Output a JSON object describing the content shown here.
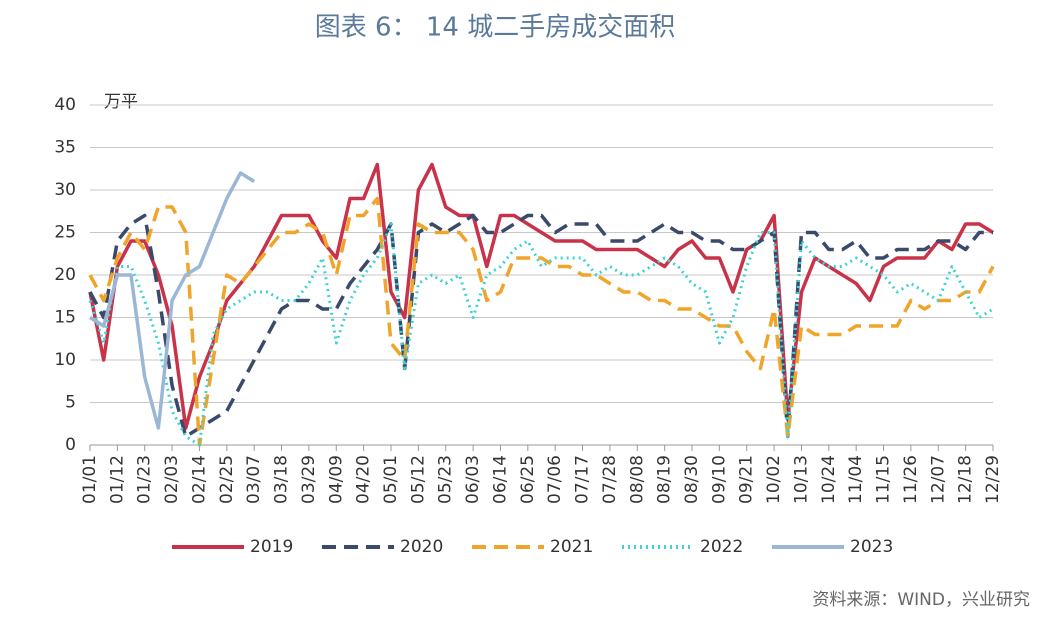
{
  "chart_data": {
    "type": "line",
    "title": "图表 6：  14 城二手房成交面积",
    "y_unit": "万平",
    "source": "资料来源：WIND，兴业研究",
    "categories": [
      "01/01",
      null,
      "01/12",
      null,
      "01/23",
      null,
      "02/03",
      null,
      "02/14",
      null,
      "02/25",
      null,
      "03/07",
      null,
      "03/18",
      null,
      "03/29",
      null,
      "04/09",
      null,
      "04/20",
      null,
      "05/01",
      null,
      "05/12",
      null,
      "05/23",
      null,
      "06/03",
      null,
      "06/14",
      null,
      "06/25",
      null,
      "07/06",
      null,
      "07/17",
      null,
      "07/28",
      null,
      "08/08",
      null,
      "08/19",
      null,
      "08/30",
      null,
      "09/10",
      null,
      "09/21",
      null,
      "10/02",
      null,
      "10/13",
      null,
      "10/24",
      null,
      "11/04",
      null,
      "11/15",
      null,
      "11/26",
      null,
      "12/07",
      null,
      "12/18",
      null,
      "12/29"
    ],
    "series": [
      {
        "name": "2019",
        "color": "#c8334a",
        "dash": "solid",
        "values": [
          18,
          10,
          21,
          24,
          24,
          20,
          14,
          2,
          8,
          12,
          17,
          19,
          21,
          24,
          27,
          27,
          27,
          24,
          22,
          29,
          29,
          33,
          18,
          15,
          30,
          33,
          28,
          27,
          27,
          21,
          27,
          27,
          26,
          25,
          24,
          24,
          24,
          23,
          23,
          23,
          23,
          22,
          21,
          23,
          24,
          22,
          22,
          18,
          23,
          24,
          27,
          3,
          18,
          22,
          21,
          20,
          19,
          17,
          21,
          22,
          22,
          22,
          24,
          23,
          26,
          26,
          25
        ]
      },
      {
        "name": "2020",
        "color": "#3a4a6b",
        "dash": "dashed",
        "values": [
          18,
          15,
          24,
          26,
          27,
          18,
          7,
          1,
          2,
          3,
          4,
          7,
          10,
          13,
          16,
          17,
          17,
          16,
          16,
          19,
          21,
          23,
          26,
          9,
          25,
          26,
          25,
          26,
          27,
          25,
          25,
          26,
          27,
          27,
          25,
          26,
          26,
          26,
          24,
          24,
          24,
          25,
          26,
          25,
          25,
          24,
          24,
          23,
          23,
          24,
          25,
          1,
          25,
          25,
          23,
          23,
          24,
          22,
          22,
          23,
          23,
          23,
          24,
          24,
          23,
          25,
          25
        ]
      },
      {
        "name": "2021",
        "color": "#f0a52a",
        "dash": "dashed",
        "values": [
          20,
          17,
          22,
          25,
          23,
          28,
          28,
          25,
          0,
          10,
          20,
          19,
          21,
          23,
          25,
          25,
          26,
          25,
          20,
          27,
          27,
          29,
          12,
          10,
          26,
          25,
          25,
          25,
          23,
          17,
          18,
          22,
          22,
          22,
          21,
          21,
          20,
          20,
          19,
          18,
          18,
          17,
          17,
          16,
          16,
          15,
          14,
          14,
          11,
          9,
          16,
          1,
          14,
          13,
          13,
          13,
          14,
          14,
          14,
          14,
          17,
          16,
          17,
          17,
          18,
          18,
          21
        ]
      },
      {
        "name": "2022",
        "color": "#3fd3d3",
        "dash": "dotted",
        "values": [
          17,
          12,
          21,
          21,
          17,
          12,
          4,
          1,
          0,
          13,
          16,
          17,
          18,
          18,
          17,
          17,
          19,
          22,
          12,
          17,
          20,
          22,
          26,
          9,
          19,
          20,
          19,
          20,
          15,
          20,
          21,
          23,
          24,
          21,
          22,
          22,
          22,
          20,
          21,
          20,
          20,
          21,
          22,
          21,
          19,
          18,
          12,
          15,
          21,
          25,
          25,
          1,
          24,
          22,
          21,
          21,
          22,
          21,
          20,
          18,
          19,
          18,
          17,
          21,
          18,
          15,
          16
        ]
      },
      {
        "name": "2023",
        "color": "#9ab8d6",
        "dash": "solid",
        "values": [
          15,
          14,
          20,
          20,
          8,
          2,
          17,
          20,
          21,
          25,
          29,
          32,
          31,
          null,
          null,
          null,
          null,
          null,
          null,
          null,
          null,
          null,
          null,
          null,
          null,
          null,
          null,
          null,
          null,
          null,
          null,
          null,
          null,
          null,
          null,
          null,
          null,
          null,
          null,
          null,
          null,
          null,
          null,
          null,
          null,
          null,
          null,
          null,
          null,
          null,
          null,
          null,
          null,
          null,
          null,
          null,
          null,
          null,
          null,
          null,
          null,
          null,
          null,
          null,
          null,
          null,
          null
        ]
      }
    ],
    "ylim": [
      0,
      40
    ],
    "yticks": [
      0,
      5,
      10,
      15,
      20,
      25,
      30,
      35,
      40
    ],
    "grid": true,
    "legend": "bottom"
  }
}
